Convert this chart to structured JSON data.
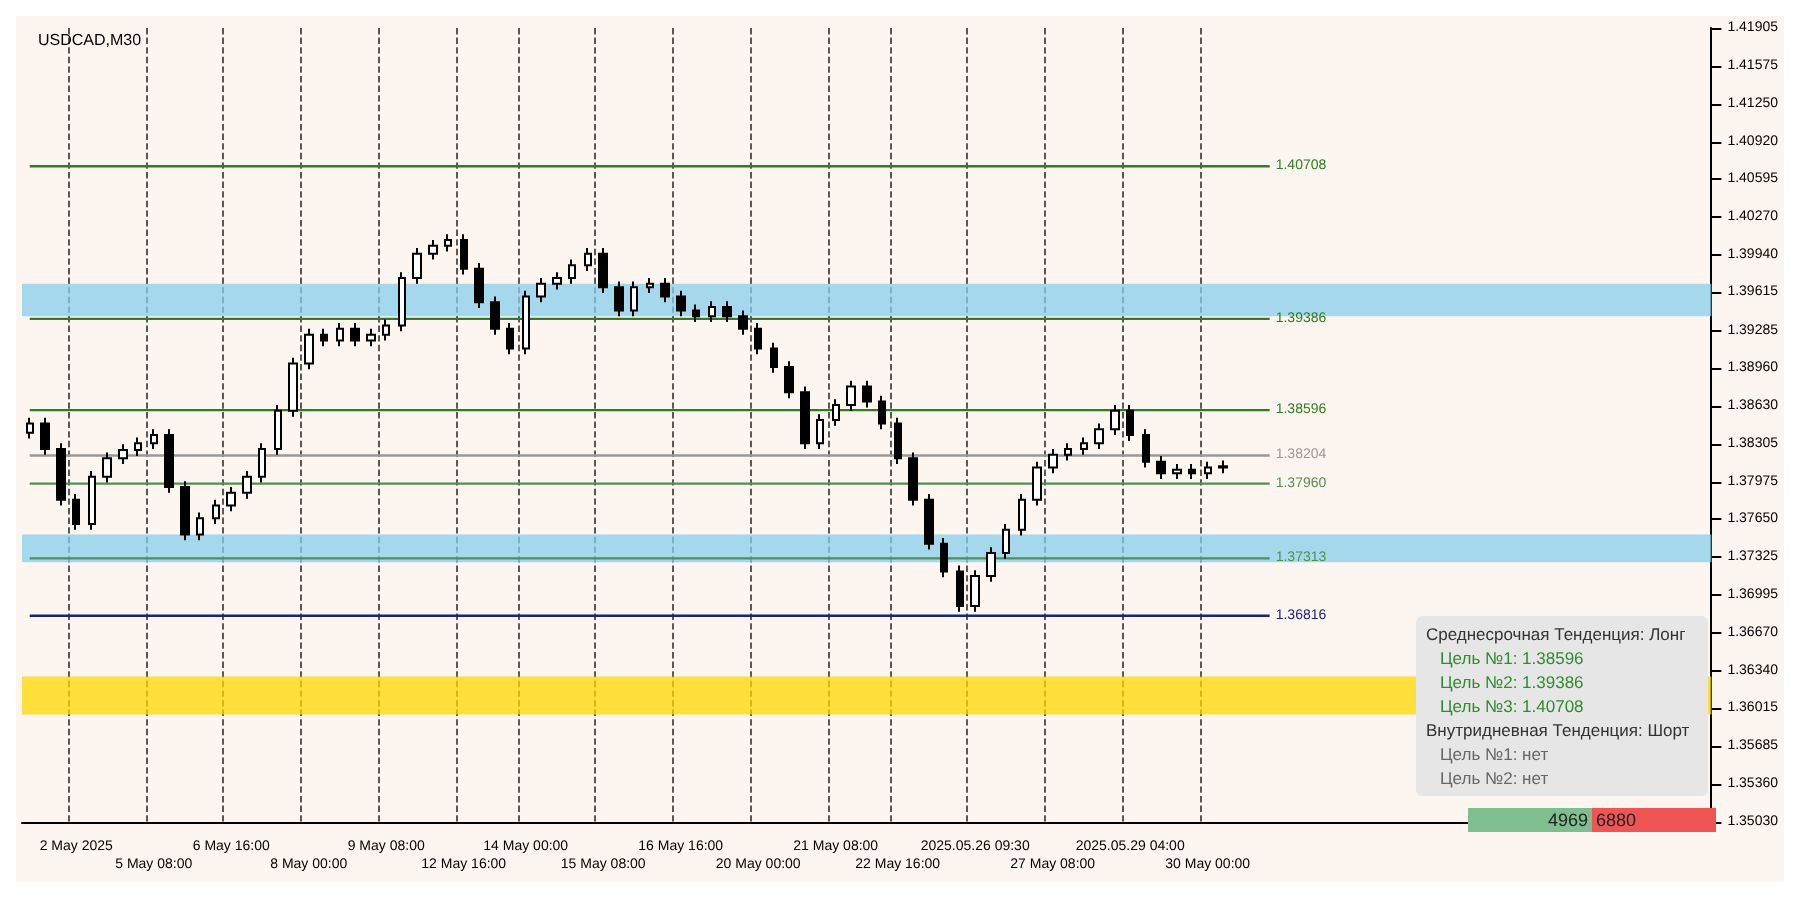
{
  "chart_data": {
    "type": "candlestick",
    "title": "USDCAD,M30",
    "categories": [
      null,
      null,
      null,
      "2 May 2025",
      null,
      null,
      null,
      null,
      "5 May 08:00",
      null,
      null,
      null,
      null,
      "6 May 16:00",
      null,
      null,
      null,
      null,
      "8 May 00:00",
      null,
      null,
      null,
      null,
      "9 May 08:00",
      null,
      null,
      null,
      null,
      "12 May 16:00",
      null,
      null,
      null,
      "14 May 00:00",
      null,
      null,
      null,
      null,
      "15 May 08:00",
      null,
      null,
      null,
      null,
      "16 May 16:00",
      null,
      null,
      null,
      null,
      "20 May 00:00",
      null,
      null,
      null,
      null,
      "21 May 08:00",
      null,
      null,
      null,
      "22 May 16:00",
      null,
      null,
      null,
      null,
      "2025.05.26 09:30",
      null,
      null,
      null,
      null,
      "27 May 08:00",
      null,
      null,
      null,
      null,
      "2025.05.29 04:00",
      null,
      null,
      null,
      null,
      "30 May 00:00",
      null,
      null,
      null,
      null,
      null,
      null,
      null,
      null,
      null,
      null,
      null,
      null,
      null,
      null,
      null,
      null,
      null,
      null,
      null,
      null,
      null,
      null,
      null,
      null,
      null,
      null,
      null,
      null,
      null,
      null,
      null,
      null
    ],
    "ohlc": [
      [
        1.384,
        1.3853,
        1.3835,
        1.3848
      ],
      [
        1.3848,
        1.3853,
        1.3821,
        1.3826
      ],
      [
        1.3826,
        1.3831,
        1.3777,
        1.3782
      ],
      [
        1.3782,
        1.3787,
        1.3756,
        1.3761
      ],
      [
        1.3761,
        1.3807,
        1.3756,
        1.3802
      ],
      [
        1.3802,
        1.3823,
        1.3797,
        1.3818
      ],
      [
        1.3818,
        1.383,
        1.3813,
        1.3825
      ],
      [
        1.3825,
        1.3836,
        1.382,
        1.3831
      ],
      [
        1.3831,
        1.3843,
        1.3826,
        1.3838
      ],
      [
        1.3838,
        1.3843,
        1.3788,
        1.3793
      ],
      [
        1.3793,
        1.3798,
        1.3747,
        1.3752
      ],
      [
        1.3752,
        1.3771,
        1.3747,
        1.3766
      ],
      [
        1.3766,
        1.3782,
        1.3761,
        1.3777
      ],
      [
        1.3777,
        1.3793,
        1.3772,
        1.3788
      ],
      [
        1.3788,
        1.3807,
        1.3783,
        1.3802
      ],
      [
        1.3802,
        1.3831,
        1.3797,
        1.3826
      ],
      [
        1.3826,
        1.3864,
        1.3821,
        1.3859
      ],
      [
        1.3859,
        1.3905,
        1.3854,
        1.39
      ],
      [
        1.39,
        1.393,
        1.3895,
        1.3925
      ],
      [
        1.3925,
        1.393,
        1.3915,
        1.392
      ],
      [
        1.392,
        1.3935,
        1.3915,
        1.393
      ],
      [
        1.393,
        1.3935,
        1.3915,
        1.392
      ],
      [
        1.392,
        1.393,
        1.3915,
        1.3925
      ],
      [
        1.3925,
        1.3938,
        1.392,
        1.3933
      ],
      [
        1.3933,
        1.3979,
        1.3928,
        1.3974
      ],
      [
        1.3974,
        1.4,
        1.3969,
        1.3995
      ],
      [
        1.3995,
        1.4007,
        1.399,
        1.4002
      ],
      [
        1.4002,
        1.4012,
        1.3997,
        1.4007
      ],
      [
        1.4007,
        1.4012,
        1.3977,
        1.3982
      ],
      [
        1.3982,
        1.3987,
        1.3948,
        1.3953
      ],
      [
        1.3953,
        1.3958,
        1.3925,
        1.393
      ],
      [
        1.393,
        1.3935,
        1.3908,
        1.3913
      ],
      [
        1.3913,
        1.3963,
        1.3908,
        1.3958
      ],
      [
        1.3958,
        1.3974,
        1.3953,
        1.3969
      ],
      [
        1.3969,
        1.3979,
        1.3964,
        1.3974
      ],
      [
        1.3974,
        1.399,
        1.3969,
        1.3985
      ],
      [
        1.3985,
        1.4,
        1.398,
        1.3995
      ],
      [
        1.3995,
        1.4,
        1.3961,
        1.3966
      ],
      [
        1.3966,
        1.3971,
        1.3941,
        1.3946
      ],
      [
        1.3946,
        1.3971,
        1.3941,
        1.3966
      ],
      [
        1.3966,
        1.3974,
        1.3961,
        1.3969
      ],
      [
        1.3969,
        1.3974,
        1.3953,
        1.3958
      ],
      [
        1.3958,
        1.3963,
        1.3941,
        1.3946
      ],
      [
        1.3946,
        1.3951,
        1.3936,
        1.3941
      ],
      [
        1.3941,
        1.3954,
        1.3936,
        1.3949
      ],
      [
        1.3949,
        1.3954,
        1.3936,
        1.3941
      ],
      [
        1.3941,
        1.3946,
        1.3925,
        1.393
      ],
      [
        1.393,
        1.3935,
        1.3908,
        1.3913
      ],
      [
        1.3913,
        1.3918,
        1.3892,
        1.3897
      ],
      [
        1.3897,
        1.3902,
        1.387,
        1.3875
      ],
      [
        1.3875,
        1.388,
        1.3826,
        1.3831
      ],
      [
        1.3831,
        1.3856,
        1.3826,
        1.3851
      ],
      [
        1.3851,
        1.3869,
        1.3846,
        1.3864
      ],
      [
        1.3864,
        1.3885,
        1.3859,
        1.388
      ],
      [
        1.388,
        1.3885,
        1.3862,
        1.3867
      ],
      [
        1.3867,
        1.3872,
        1.3843,
        1.3848
      ],
      [
        1.3848,
        1.3853,
        1.3813,
        1.3818
      ],
      [
        1.3818,
        1.3823,
        1.3777,
        1.3782
      ],
      [
        1.3782,
        1.3787,
        1.3739,
        1.3744
      ],
      [
        1.3744,
        1.3749,
        1.3715,
        1.372
      ],
      [
        1.372,
        1.3725,
        1.3685,
        1.369
      ],
      [
        1.369,
        1.3721,
        1.3685,
        1.3716
      ],
      [
        1.3716,
        1.3741,
        1.3711,
        1.3736
      ],
      [
        1.3736,
        1.3761,
        1.3731,
        1.3756
      ],
      [
        1.3756,
        1.3787,
        1.3751,
        1.3782
      ],
      [
        1.3782,
        1.3815,
        1.3777,
        1.381
      ],
      [
        1.381,
        1.3826,
        1.3805,
        1.3821
      ],
      [
        1.3821,
        1.3831,
        1.3816,
        1.3826
      ],
      [
        1.3826,
        1.3836,
        1.3821,
        1.3831
      ],
      [
        1.3831,
        1.3848,
        1.3826,
        1.3843
      ],
      [
        1.3843,
        1.3864,
        1.3838,
        1.3859
      ],
      [
        1.3859,
        1.3864,
        1.3833,
        1.3838
      ],
      [
        1.3838,
        1.3843,
        1.381,
        1.3815
      ],
      [
        1.3815,
        1.382,
        1.38,
        1.3805
      ],
      [
        1.3805,
        1.3813,
        1.38,
        1.3808
      ],
      [
        1.3808,
        1.3813,
        1.38,
        1.3805
      ],
      [
        1.3805,
        1.3815,
        1.38,
        1.381
      ],
      [
        1.381,
        1.3816,
        1.3805,
        1.3811
      ],
      null,
      null,
      null,
      null,
      null,
      null,
      null,
      null,
      null,
      null,
      null,
      null,
      null,
      null,
      null,
      null,
      null,
      null,
      null,
      null,
      null,
      null,
      null,
      null,
      null,
      null,
      null,
      null,
      null,
      null,
      null
    ],
    "color": "#000000",
    "ylim": [
      1.3503,
      1.41905
    ],
    "yticks": [
      {
        "value": 1.3503,
        "label": "1.35030"
      },
      {
        "value": 1.3536,
        "label": "1.35360"
      },
      {
        "value": 1.35685,
        "label": "1.35685"
      },
      {
        "value": 1.36015,
        "label": "1.36015"
      },
      {
        "value": 1.3634,
        "label": "1.36340"
      },
      {
        "value": 1.3667,
        "label": "1.36670"
      },
      {
        "value": 1.36995,
        "label": "1.36995"
      },
      {
        "value": 1.37325,
        "label": "1.37325"
      },
      {
        "value": 1.3765,
        "label": "1.37650"
      },
      {
        "value": 1.37975,
        "label": "1.37975"
      },
      {
        "value": 1.38305,
        "label": "1.38305"
      },
      {
        "value": 1.3863,
        "label": "1.38630"
      },
      {
        "value": 1.3896,
        "label": "1.38960"
      },
      {
        "value": 1.39285,
        "label": "1.39285"
      },
      {
        "value": 1.39615,
        "label": "1.39615"
      },
      {
        "value": 1.3994,
        "label": "1.39940"
      },
      {
        "value": 1.4027,
        "label": "1.40270"
      },
      {
        "value": 1.40595,
        "label": "1.40595"
      },
      {
        "value": 1.4092,
        "label": "1.40920"
      },
      {
        "value": 1.4125,
        "label": "1.41250"
      },
      {
        "value": 1.41575,
        "label": "1.41575"
      },
      {
        "value": 1.41905,
        "label": "1.41905"
      }
    ],
    "grid": "x",
    "ref_lines": [
      {
        "axis": "y",
        "value": 1.40708,
        "label": "1.40708",
        "color": "#2e7d1e",
        "line_style": "solid"
      },
      {
        "axis": "y",
        "value": 1.39386,
        "label": "1.39386",
        "color": "#2e7d1e",
        "line_style": "solid"
      },
      {
        "axis": "y",
        "value": 1.38596,
        "label": "1.38596",
        "color": "#2e7d1e",
        "line_style": "solid"
      },
      {
        "axis": "y",
        "value": 1.38204,
        "label": "1.38204",
        "color": "#999999",
        "line_style": "solid"
      },
      {
        "axis": "y",
        "value": 1.3796,
        "label": "1.37960",
        "color": "#4f8f4f",
        "line_style": "solid"
      },
      {
        "axis": "y",
        "value": 1.37313,
        "label": "1.37313",
        "color": "#4f8f4f",
        "line_style": "solid"
      },
      {
        "axis": "y",
        "value": 1.36816,
        "label": "1.36816",
        "color": "#1a237e",
        "line_style": "solid"
      }
    ],
    "bands": [
      {
        "axis": "y",
        "from": 1.3941,
        "to": 1.3969,
        "color": "#87ceeb"
      },
      {
        "axis": "y",
        "from": 1.3728,
        "to": 1.3752,
        "color": "#87ceeb"
      },
      {
        "axis": "y",
        "from": 1.3596,
        "to": 1.3629,
        "color": "#ffd700"
      }
    ],
    "annotations": [
      "Среднесрочная Тенденция: Лонг",
      "Цель №1: 1.38596",
      "Цель №2: 1.39386",
      "Цель №3: 1.40708",
      "Внутридневная Тенденция: Шорт",
      "Цель №1: нет",
      "Цель №2: нет",
      "4969",
      "6880"
    ]
  }
}
